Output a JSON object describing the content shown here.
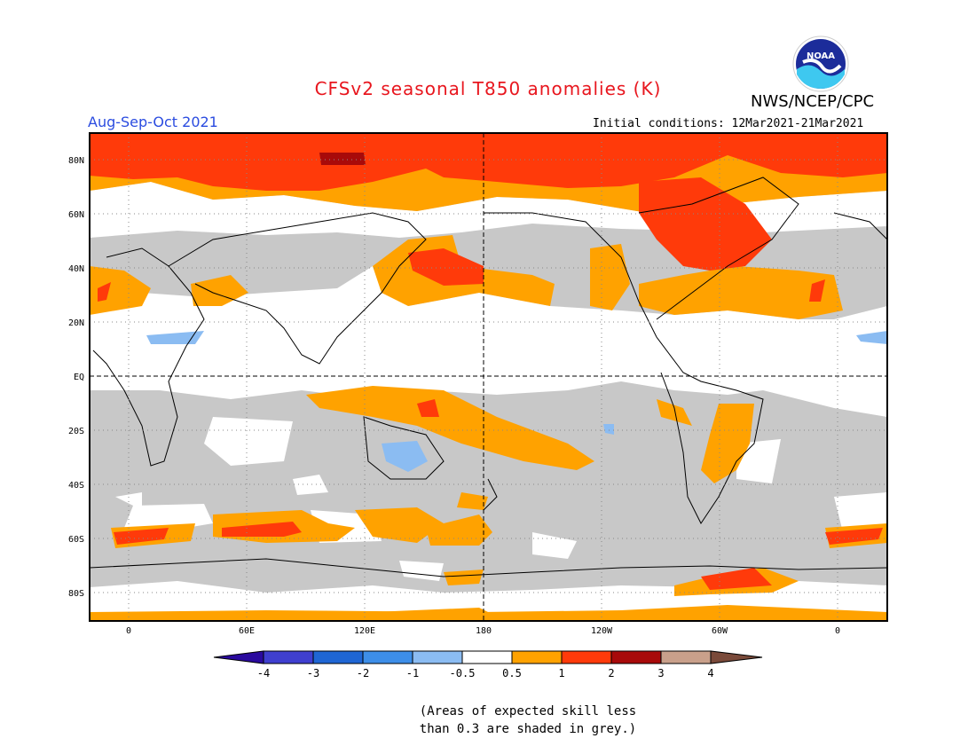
{
  "title": "CFSv2 seasonal T850 anomalies (K)",
  "organization": "NWS/NCEP/CPC",
  "logo_text": "NOAA",
  "season": "Aug-Sep-Oct 2021",
  "initial_conditions": "Initial conditions: 12Mar2021-21Mar2021",
  "lat_labels": [
    "80N",
    "60N",
    "40N",
    "20N",
    "EQ",
    "20S",
    "40S",
    "60S",
    "80S"
  ],
  "lon_labels": [
    "0",
    "60E",
    "120E",
    "180",
    "120W",
    "60W",
    "0"
  ],
  "colorbar": {
    "labels": [
      "-4",
      "-3",
      "-2",
      "-1",
      "-0.5",
      "0.5",
      "1",
      "2",
      "3",
      "4"
    ],
    "colors": [
      "#2a0a9e",
      "#3f3fcf",
      "#1f66d4",
      "#3d8ee8",
      "#8bbcf2",
      "#ffffff",
      "#ffa200",
      "#ff3a0a",
      "#a80a0a",
      "#c9a08b",
      "#7a4a3a"
    ]
  },
  "skill_shading_color": "#c8c8c8",
  "note_line1": "(Areas of expected skill less",
  "note_line2": "than 0.3 are shaded in grey.)"
}
